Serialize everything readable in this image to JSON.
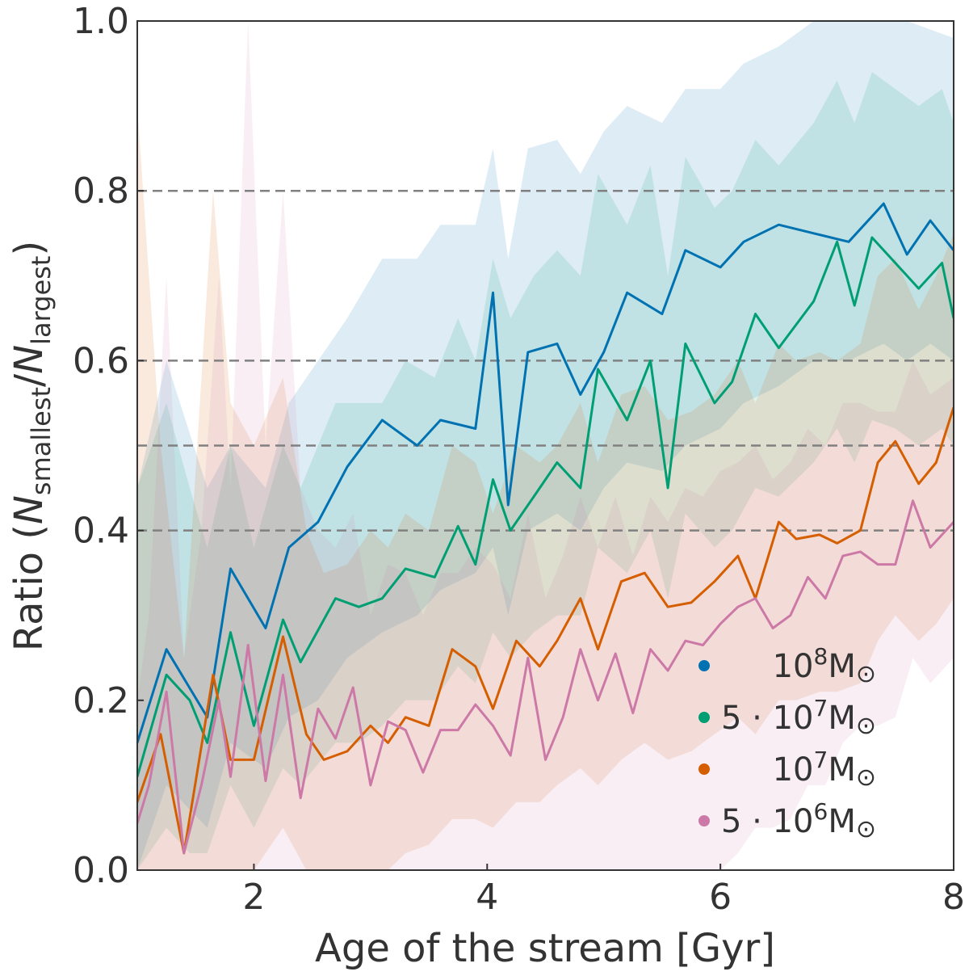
{
  "chart_data": {
    "type": "line",
    "xlabel": "Age of the stream [Gyr]",
    "ylabel": "Ratio (N_smallest/N_largest)",
    "ylabel_parts": {
      "prefix": "Ratio (",
      "n1": "N",
      "sub1": "smallest",
      "slash": "/",
      "n2": "N",
      "sub2": "largest",
      "suffix": ")"
    },
    "xlim": [
      1,
      8
    ],
    "ylim": [
      0,
      1.0
    ],
    "xticks": [
      2,
      4,
      6,
      8
    ],
    "yticks": [
      0.0,
      0.2,
      0.4,
      0.6,
      0.8,
      1.0
    ],
    "xtick_labels": [
      "2",
      "4",
      "6",
      "8"
    ],
    "ytick_labels": [
      "0.0",
      "0.2",
      "0.4",
      "0.6",
      "0.8",
      "1.0"
    ],
    "reference_lines": [
      0.4,
      0.5,
      0.6,
      0.8
    ],
    "reference_line_color": "#808080",
    "legend_position": "lower-right",
    "series": [
      {
        "name": "10^8 M_sun",
        "legend": {
          "base": "10",
          "exp": "8",
          "unit": "M",
          "sun": "⊙"
        },
        "color": "#0072B2",
        "x": [
          1.0,
          1.25,
          1.6,
          1.8,
          2.1,
          2.3,
          2.55,
          2.8,
          3.1,
          3.4,
          3.6,
          3.9,
          4.05,
          4.18,
          4.35,
          4.6,
          4.8,
          5.0,
          5.2,
          5.5,
          5.7,
          6.0,
          6.2,
          6.5,
          6.8,
          7.1,
          7.4,
          7.6,
          7.8,
          8.0
        ],
        "y": [
          0.15,
          0.26,
          0.18,
          0.355,
          0.285,
          0.38,
          0.41,
          0.475,
          0.53,
          0.5,
          0.53,
          0.52,
          0.68,
          0.43,
          0.61,
          0.62,
          0.56,
          0.61,
          0.68,
          0.655,
          0.73,
          0.71,
          0.74,
          0.76,
          0.75,
          0.74,
          0.785,
          0.725,
          0.765,
          0.73
        ],
        "band_lower": [
          0.0,
          0.1,
          0.05,
          0.15,
          0.12,
          0.18,
          0.2,
          0.25,
          0.28,
          0.3,
          0.33,
          0.35,
          0.38,
          0.3,
          0.4,
          0.42,
          0.4,
          0.45,
          0.48,
          0.47,
          0.5,
          0.52,
          0.55,
          0.57,
          0.6,
          0.6,
          0.62,
          0.6,
          0.62,
          0.6
        ],
        "band_upper": [
          0.45,
          0.6,
          0.45,
          0.5,
          0.45,
          0.55,
          0.6,
          0.65,
          0.72,
          0.72,
          0.76,
          0.76,
          0.85,
          0.72,
          0.85,
          0.86,
          0.82,
          0.87,
          0.9,
          0.88,
          0.92,
          0.92,
          0.95,
          0.97,
          1.0,
          1.0,
          1.0,
          1.0,
          0.99,
          0.98
        ]
      },
      {
        "name": "5*10^7 M_sun",
        "legend": {
          "base": "5 · 10",
          "exp": "7",
          "unit": "M",
          "sun": "⊙"
        },
        "color": "#009E73",
        "x": [
          1.0,
          1.25,
          1.45,
          1.6,
          1.8,
          2.0,
          2.25,
          2.4,
          2.7,
          2.9,
          3.1,
          3.3,
          3.55,
          3.75,
          3.9,
          4.05,
          4.2,
          4.4,
          4.6,
          4.8,
          4.95,
          5.2,
          5.4,
          5.55,
          5.7,
          5.95,
          6.1,
          6.3,
          6.5,
          6.8,
          7.0,
          7.15,
          7.3,
          7.5,
          7.7,
          7.9,
          8.0
        ],
        "y": [
          0.11,
          0.23,
          0.2,
          0.15,
          0.28,
          0.17,
          0.295,
          0.245,
          0.32,
          0.31,
          0.32,
          0.355,
          0.345,
          0.405,
          0.36,
          0.46,
          0.4,
          0.44,
          0.48,
          0.45,
          0.59,
          0.53,
          0.6,
          0.45,
          0.62,
          0.55,
          0.575,
          0.655,
          0.615,
          0.67,
          0.74,
          0.665,
          0.745,
          0.715,
          0.685,
          0.715,
          0.65
        ],
        "band_lower": [
          0.0,
          0.05,
          0.02,
          0.02,
          0.1,
          0.05,
          0.12,
          0.1,
          0.15,
          0.15,
          0.17,
          0.2,
          0.2,
          0.24,
          0.22,
          0.28,
          0.25,
          0.28,
          0.3,
          0.3,
          0.38,
          0.35,
          0.4,
          0.32,
          0.42,
          0.38,
          0.4,
          0.45,
          0.44,
          0.48,
          0.52,
          0.48,
          0.53,
          0.52,
          0.5,
          0.52,
          0.5
        ],
        "band_upper": [
          0.45,
          0.55,
          0.45,
          0.38,
          0.5,
          0.38,
          0.5,
          0.45,
          0.55,
          0.55,
          0.55,
          0.6,
          0.58,
          0.65,
          0.6,
          0.72,
          0.65,
          0.7,
          0.73,
          0.7,
          0.82,
          0.76,
          0.83,
          0.7,
          0.84,
          0.78,
          0.8,
          0.86,
          0.83,
          0.88,
          0.93,
          0.88,
          0.94,
          0.92,
          0.9,
          0.92,
          0.88
        ]
      },
      {
        "name": "10^7 M_sun",
        "legend": {
          "base": "10",
          "exp": "7",
          "unit": "M",
          "sun": "⊙"
        },
        "color": "#D55E00",
        "x": [
          1.0,
          1.2,
          1.4,
          1.65,
          1.8,
          2.0,
          2.25,
          2.45,
          2.6,
          2.8,
          3.0,
          3.15,
          3.3,
          3.5,
          3.7,
          3.9,
          4.05,
          4.25,
          4.45,
          4.6,
          4.8,
          4.95,
          5.15,
          5.35,
          5.55,
          5.75,
          5.95,
          6.15,
          6.3,
          6.5,
          6.65,
          6.85,
          7.0,
          7.2,
          7.35,
          7.5,
          7.7,
          7.85,
          8.0
        ],
        "y": [
          0.08,
          0.16,
          0.02,
          0.23,
          0.13,
          0.13,
          0.275,
          0.16,
          0.13,
          0.14,
          0.17,
          0.15,
          0.18,
          0.17,
          0.26,
          0.24,
          0.19,
          0.27,
          0.24,
          0.27,
          0.32,
          0.26,
          0.34,
          0.35,
          0.31,
          0.315,
          0.34,
          0.37,
          0.32,
          0.41,
          0.39,
          0.395,
          0.385,
          0.4,
          0.48,
          0.505,
          0.455,
          0.48,
          0.545
        ],
        "band_lower": [
          0.0,
          0.0,
          0.0,
          0.0,
          0.0,
          0.0,
          0.05,
          0.0,
          0.0,
          0.0,
          0.0,
          0.0,
          0.02,
          0.03,
          0.06,
          0.06,
          0.05,
          0.08,
          0.08,
          0.1,
          0.12,
          0.1,
          0.13,
          0.15,
          0.13,
          0.14,
          0.16,
          0.18,
          0.16,
          0.2,
          0.2,
          0.21,
          0.21,
          0.22,
          0.27,
          0.3,
          0.27,
          0.29,
          0.32
        ],
        "band_upper": [
          0.9,
          0.5,
          0.25,
          0.8,
          0.55,
          0.5,
          0.58,
          0.4,
          0.35,
          0.36,
          0.4,
          0.38,
          0.42,
          0.4,
          0.5,
          0.48,
          0.42,
          0.5,
          0.48,
          0.5,
          0.55,
          0.48,
          0.56,
          0.57,
          0.53,
          0.54,
          0.56,
          0.6,
          0.55,
          0.62,
          0.6,
          0.61,
          0.6,
          0.62,
          0.7,
          0.72,
          0.66,
          0.7,
          0.75
        ]
      },
      {
        "name": "5*10^6 M_sun",
        "legend": {
          "base": "5 · 10",
          "exp": "6",
          "unit": "M",
          "sun": "⊙"
        },
        "color": "#CC79A7",
        "x": [
          1.0,
          1.1,
          1.25,
          1.4,
          1.55,
          1.7,
          1.8,
          1.95,
          2.1,
          2.25,
          2.4,
          2.55,
          2.7,
          2.85,
          3.0,
          3.15,
          3.3,
          3.45,
          3.6,
          3.75,
          3.9,
          4.05,
          4.2,
          4.35,
          4.5,
          4.65,
          4.8,
          4.95,
          5.1,
          5.25,
          5.4,
          5.55,
          5.7,
          5.85,
          6.0,
          6.15,
          6.3,
          6.45,
          6.6,
          6.75,
          6.9,
          7.05,
          7.2,
          7.35,
          7.5,
          7.65,
          7.8,
          8.0
        ],
        "y": [
          0.055,
          0.1,
          0.21,
          0.02,
          0.1,
          0.2,
          0.11,
          0.265,
          0.105,
          0.23,
          0.085,
          0.19,
          0.155,
          0.215,
          0.1,
          0.175,
          0.165,
          0.115,
          0.165,
          0.165,
          0.195,
          0.17,
          0.135,
          0.25,
          0.13,
          0.18,
          0.26,
          0.2,
          0.255,
          0.185,
          0.26,
          0.235,
          0.27,
          0.265,
          0.29,
          0.31,
          0.32,
          0.285,
          0.3,
          0.345,
          0.32,
          0.37,
          0.375,
          0.36,
          0.36,
          0.435,
          0.38,
          0.41
        ],
        "band_lower": [
          0.0,
          0.0,
          0.0,
          0.0,
          0.0,
          0.0,
          0.0,
          0.0,
          0.0,
          0.0,
          0.0,
          0.0,
          0.0,
          0.0,
          0.0,
          0.0,
          0.0,
          0.0,
          0.0,
          0.0,
          0.0,
          0.0,
          0.0,
          0.0,
          0.0,
          0.0,
          0.0,
          0.0,
          0.0,
          0.0,
          0.0,
          0.0,
          0.0,
          0.0,
          0.0,
          0.02,
          0.05,
          0.05,
          0.06,
          0.1,
          0.1,
          0.15,
          0.17,
          0.17,
          0.18,
          0.25,
          0.22,
          0.25
        ],
        "band_upper": [
          0.2,
          0.3,
          0.7,
          0.25,
          0.4,
          0.7,
          0.45,
          1.0,
          0.5,
          0.8,
          0.45,
          0.4,
          0.38,
          0.42,
          0.3,
          0.36,
          0.35,
          0.3,
          0.35,
          0.35,
          0.38,
          0.36,
          0.32,
          0.42,
          0.32,
          0.37,
          0.44,
          0.38,
          0.44,
          0.37,
          0.44,
          0.41,
          0.45,
          0.44,
          0.47,
          0.48,
          0.5,
          0.46,
          0.48,
          0.52,
          0.5,
          0.55,
          0.55,
          0.54,
          0.54,
          0.6,
          0.56,
          0.58
        ]
      }
    ]
  }
}
